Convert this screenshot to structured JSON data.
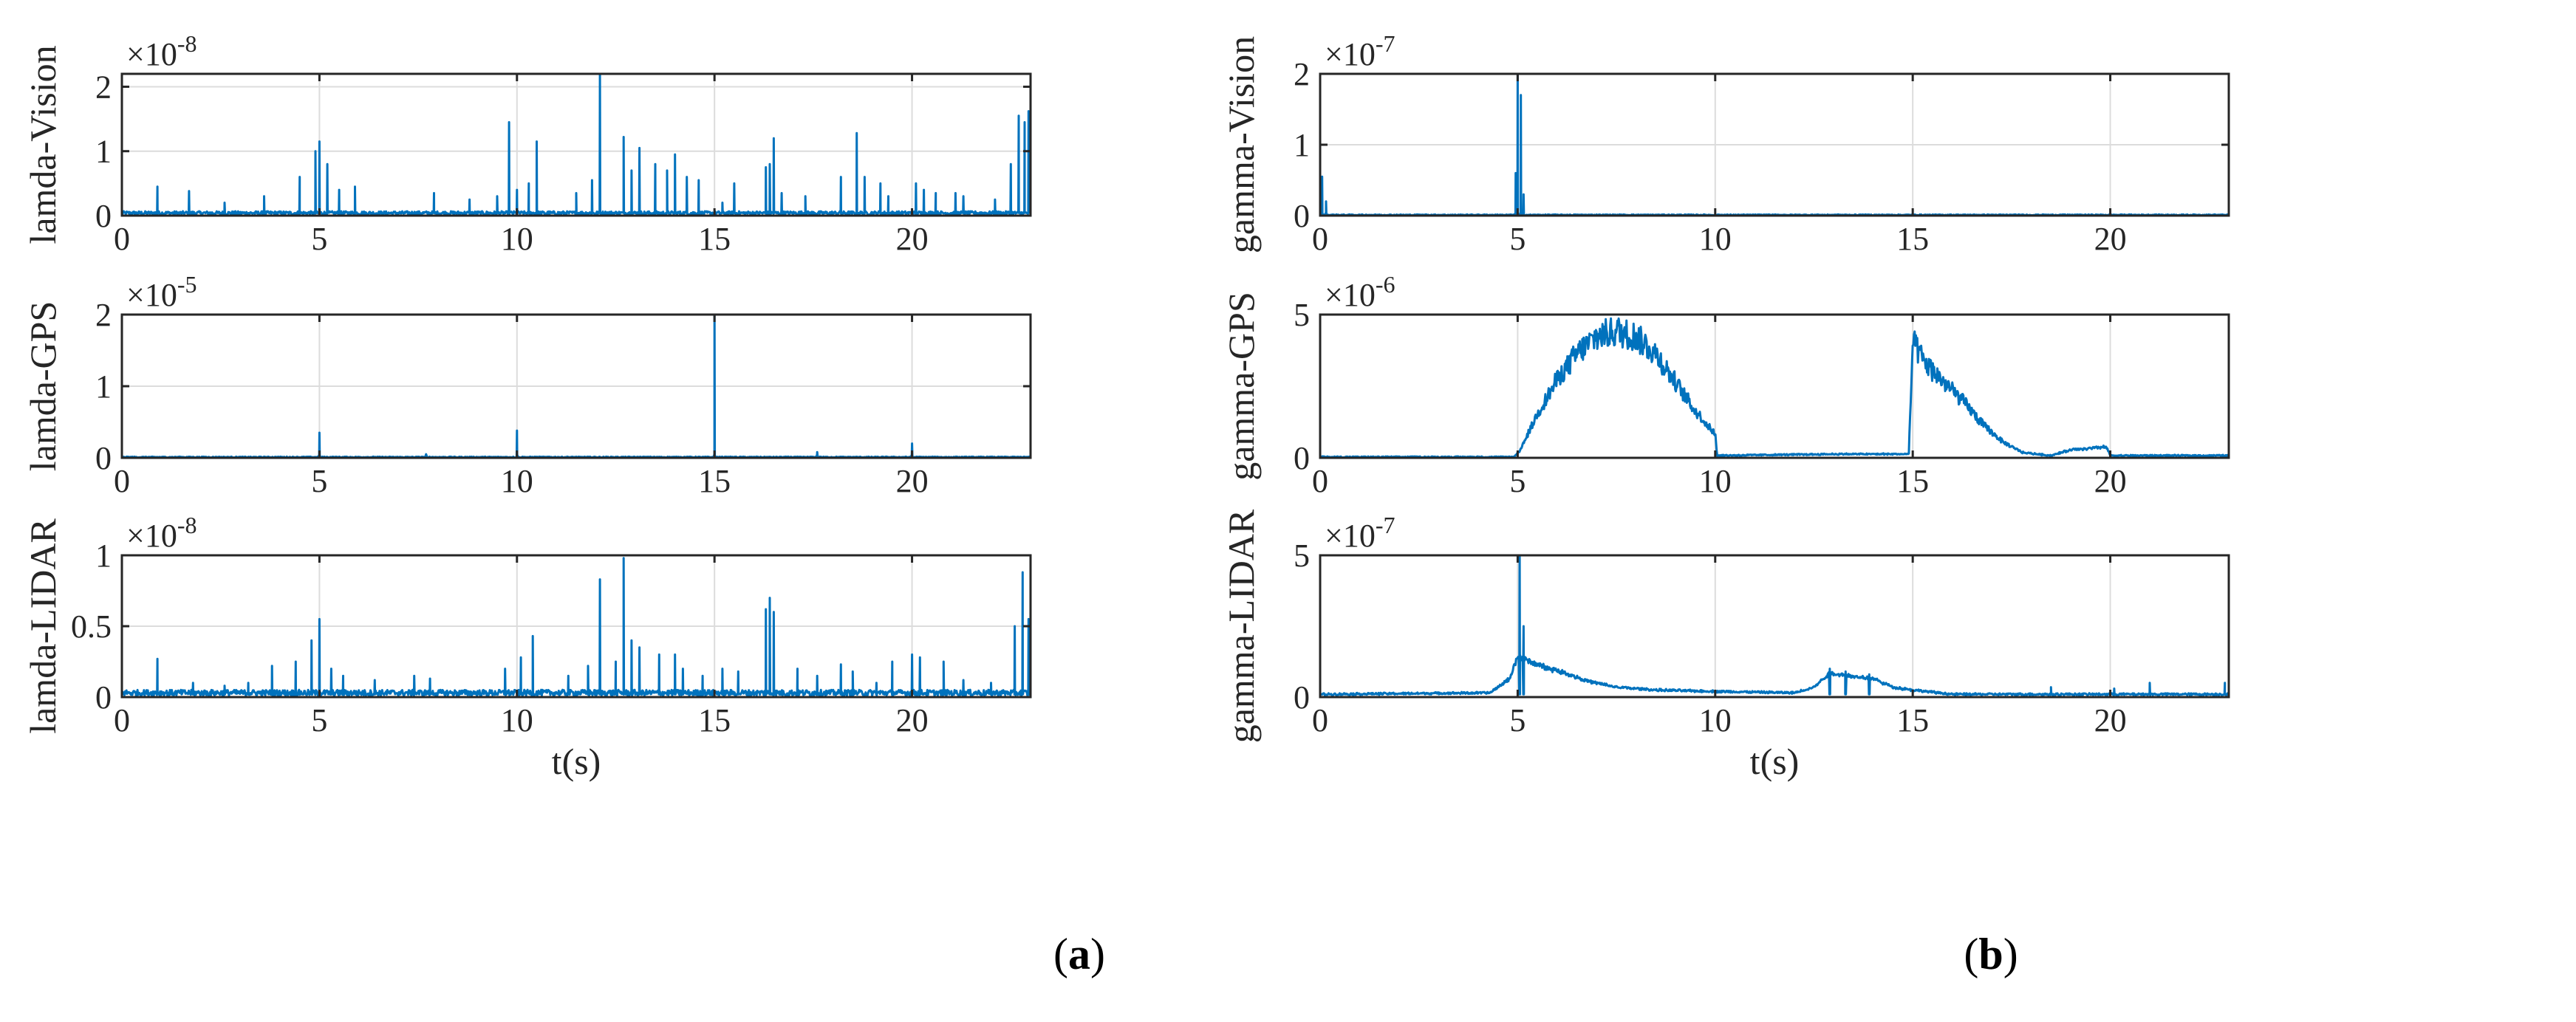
{
  "panels": [
    {
      "label_open": "(",
      "label_letter": "a",
      "label_close": ")"
    },
    {
      "label_open": "(",
      "label_letter": "b",
      "label_close": ")"
    }
  ],
  "chart_data": [
    {
      "type": "line",
      "panel": "a",
      "ylabel": "lamda-Vision",
      "xlabel": "",
      "multiplier_base": "×10",
      "multiplier_exp": "-8",
      "xlim": [
        0,
        23
      ],
      "ylim": [
        0,
        2.2
      ],
      "xticks": [
        0,
        5,
        10,
        15,
        20
      ],
      "yticks": [
        0,
        1,
        2
      ],
      "grid": true,
      "color": "#0072BD",
      "baseline": 0.04,
      "spikes": [
        [
          0.9,
          0.45
        ],
        [
          1.7,
          0.38
        ],
        [
          2.6,
          0.2
        ],
        [
          3.6,
          0.3
        ],
        [
          4.5,
          0.6
        ],
        [
          4.9,
          1.0
        ],
        [
          5.0,
          1.15
        ],
        [
          5.2,
          0.8
        ],
        [
          5.5,
          0.4
        ],
        [
          5.9,
          0.45
        ],
        [
          7.9,
          0.35
        ],
        [
          8.8,
          0.25
        ],
        [
          9.5,
          0.3
        ],
        [
          9.8,
          1.45
        ],
        [
          10.0,
          0.4
        ],
        [
          10.3,
          0.5
        ],
        [
          10.5,
          1.15
        ],
        [
          11.5,
          0.35
        ],
        [
          11.9,
          0.55
        ],
        [
          12.1,
          2.2
        ],
        [
          12.7,
          1.22
        ],
        [
          12.9,
          0.7
        ],
        [
          13.1,
          1.05
        ],
        [
          13.5,
          0.8
        ],
        [
          13.8,
          0.7
        ],
        [
          14.0,
          0.95
        ],
        [
          14.3,
          0.6
        ],
        [
          14.6,
          0.55
        ],
        [
          15.2,
          0.2
        ],
        [
          15.5,
          0.5
        ],
        [
          16.3,
          0.75
        ],
        [
          16.4,
          0.8
        ],
        [
          16.5,
          1.2
        ],
        [
          16.7,
          0.35
        ],
        [
          17.3,
          0.3
        ],
        [
          18.2,
          0.6
        ],
        [
          18.6,
          1.28
        ],
        [
          18.8,
          0.6
        ],
        [
          19.2,
          0.5
        ],
        [
          19.4,
          0.3
        ],
        [
          20.1,
          0.5
        ],
        [
          20.3,
          0.4
        ],
        [
          20.6,
          0.35
        ],
        [
          21.1,
          0.35
        ],
        [
          21.3,
          0.3
        ],
        [
          22.1,
          0.25
        ],
        [
          22.5,
          0.8
        ],
        [
          22.7,
          1.55
        ],
        [
          22.85,
          1.45
        ],
        [
          22.95,
          1.62
        ]
      ]
    },
    {
      "type": "line",
      "panel": "a",
      "ylabel": "lamda-GPS",
      "xlabel": "",
      "multiplier_base": "×10",
      "multiplier_exp": "-5",
      "xlim": [
        0,
        23
      ],
      "ylim": [
        0,
        2
      ],
      "xticks": [
        0,
        5,
        10,
        15,
        20
      ],
      "yticks": [
        0,
        1,
        2
      ],
      "grid": true,
      "color": "#0072BD",
      "baseline": 0.01,
      "spikes": [
        [
          5.0,
          0.35
        ],
        [
          7.7,
          0.05
        ],
        [
          10.0,
          0.38
        ],
        [
          15.0,
          2.0
        ],
        [
          17.6,
          0.08
        ],
        [
          20.0,
          0.2
        ]
      ]
    },
    {
      "type": "line",
      "panel": "a",
      "ylabel": "lamda-LIDAR",
      "xlabel": "t(s)",
      "multiplier_base": "×10",
      "multiplier_exp": "-8",
      "xlim": [
        0,
        23
      ],
      "ylim": [
        0,
        1
      ],
      "xticks": [
        0,
        5,
        10,
        15,
        20
      ],
      "yticks": [
        0,
        0.5,
        1
      ],
      "ytick_labels": [
        "0",
        "0.5",
        "1"
      ],
      "grid": true,
      "color": "#0072BD",
      "baseline": 0.03,
      "spikes": [
        [
          0.9,
          0.27
        ],
        [
          1.8,
          0.1
        ],
        [
          2.6,
          0.08
        ],
        [
          3.2,
          0.1
        ],
        [
          3.8,
          0.22
        ],
        [
          4.4,
          0.25
        ],
        [
          4.8,
          0.4
        ],
        [
          5.0,
          0.55
        ],
        [
          5.3,
          0.2
        ],
        [
          5.6,
          0.15
        ],
        [
          6.4,
          0.12
        ],
        [
          7.4,
          0.15
        ],
        [
          7.8,
          0.13
        ],
        [
          9.7,
          0.2
        ],
        [
          10.1,
          0.28
        ],
        [
          10.4,
          0.43
        ],
        [
          11.3,
          0.15
        ],
        [
          11.8,
          0.22
        ],
        [
          12.1,
          0.83
        ],
        [
          12.5,
          0.25
        ],
        [
          12.7,
          0.98
        ],
        [
          12.9,
          0.4
        ],
        [
          13.1,
          0.35
        ],
        [
          13.6,
          0.3
        ],
        [
          14.0,
          0.3
        ],
        [
          14.2,
          0.2
        ],
        [
          14.7,
          0.15
        ],
        [
          15.2,
          0.2
        ],
        [
          15.6,
          0.18
        ],
        [
          16.3,
          0.62
        ],
        [
          16.4,
          0.7
        ],
        [
          16.5,
          0.6
        ],
        [
          17.1,
          0.2
        ],
        [
          17.6,
          0.15
        ],
        [
          18.2,
          0.23
        ],
        [
          18.5,
          0.18
        ],
        [
          19.1,
          0.1
        ],
        [
          19.5,
          0.25
        ],
        [
          20.0,
          0.3
        ],
        [
          20.2,
          0.28
        ],
        [
          20.8,
          0.25
        ],
        [
          21.3,
          0.12
        ],
        [
          22.0,
          0.1
        ],
        [
          22.6,
          0.5
        ],
        [
          22.8,
          0.88
        ],
        [
          22.95,
          0.55
        ]
      ]
    },
    {
      "type": "line",
      "panel": "b",
      "ylabel": "gamma-Vision",
      "xlabel": "",
      "multiplier_base": "×10",
      "multiplier_exp": "-7",
      "xlim": [
        0,
        23
      ],
      "ylim": [
        0,
        2
      ],
      "xticks": [
        0,
        5,
        10,
        15,
        20
      ],
      "yticks": [
        0,
        1,
        2
      ],
      "grid": true,
      "color": "#0072BD",
      "baseline": 0.01,
      "spikes": [
        [
          0.05,
          0.55
        ],
        [
          0.15,
          0.2
        ],
        [
          4.95,
          0.6
        ],
        [
          5.0,
          2.0
        ],
        [
          5.08,
          1.7
        ],
        [
          5.15,
          0.3
        ]
      ]
    },
    {
      "type": "line",
      "panel": "b",
      "ylabel": "gamma-GPS",
      "xlabel": "",
      "multiplier_base": "×10",
      "multiplier_exp": "-6",
      "xlim": [
        0,
        23
      ],
      "ylim": [
        0,
        5
      ],
      "xticks": [
        0,
        5,
        10,
        15,
        20
      ],
      "yticks": [
        0,
        5
      ],
      "grid": true,
      "color": "#0072BD",
      "baseline": 0.03,
      "curve": [
        [
          0,
          0
        ],
        [
          4.9,
          0
        ],
        [
          5.05,
          0.2
        ],
        [
          5.5,
          1.5
        ],
        [
          6.0,
          2.7
        ],
        [
          6.5,
          3.6
        ],
        [
          7.0,
          4.2
        ],
        [
          7.5,
          4.4
        ],
        [
          8.0,
          4.2
        ],
        [
          8.5,
          3.6
        ],
        [
          9.0,
          2.6
        ],
        [
          9.5,
          1.6
        ],
        [
          10.0,
          0.8
        ],
        [
          10.05,
          0.05
        ],
        [
          13.0,
          0.1
        ],
        [
          14.9,
          0.1
        ],
        [
          15.0,
          4.0
        ],
        [
          15.3,
          3.3
        ],
        [
          15.8,
          2.6
        ],
        [
          16.3,
          1.9
        ],
        [
          16.8,
          1.1
        ],
        [
          17.3,
          0.5
        ],
        [
          17.8,
          0.15
        ],
        [
          18.5,
          0.05
        ],
        [
          19.0,
          0.25
        ],
        [
          19.5,
          0.3
        ],
        [
          19.9,
          0.35
        ],
        [
          20.0,
          0.05
        ],
        [
          23,
          0.05
        ]
      ],
      "noise": 0.25
    },
    {
      "type": "line",
      "panel": "b",
      "ylabel": "gamma-LIDAR",
      "xlabel": "t(s)",
      "multiplier_base": "×10",
      "multiplier_exp": "-7",
      "xlim": [
        0,
        23
      ],
      "ylim": [
        0,
        5
      ],
      "xticks": [
        0,
        5,
        10,
        15,
        20
      ],
      "yticks": [
        0,
        5
      ],
      "grid": true,
      "color": "#0072BD",
      "baseline": 0.05,
      "curve": [
        [
          0,
          0.05
        ],
        [
          4.3,
          0.1
        ],
        [
          4.8,
          0.6
        ],
        [
          5.0,
          1.4
        ],
        [
          5.3,
          1.2
        ],
        [
          5.7,
          1.0
        ],
        [
          6.2,
          0.8
        ],
        [
          6.8,
          0.5
        ],
        [
          7.5,
          0.3
        ],
        [
          8.5,
          0.2
        ],
        [
          10,
          0.15
        ],
        [
          12.0,
          0.1
        ],
        [
          12.5,
          0.3
        ],
        [
          12.9,
          0.8
        ],
        [
          13.4,
          0.7
        ],
        [
          14.0,
          0.6
        ],
        [
          14.5,
          0.3
        ],
        [
          15.0,
          0.2
        ],
        [
          16.0,
          0.05
        ],
        [
          23,
          0.05
        ]
      ],
      "spikes": [
        [
          5.05,
          5.0
        ],
        [
          5.15,
          2.5
        ],
        [
          12.9,
          1.0
        ],
        [
          13.3,
          0.9
        ],
        [
          13.9,
          0.8
        ],
        [
          18.5,
          0.35
        ],
        [
          20.1,
          0.3
        ],
        [
          21.0,
          0.5
        ],
        [
          22.9,
          0.5
        ]
      ],
      "noise": 0.15
    }
  ]
}
